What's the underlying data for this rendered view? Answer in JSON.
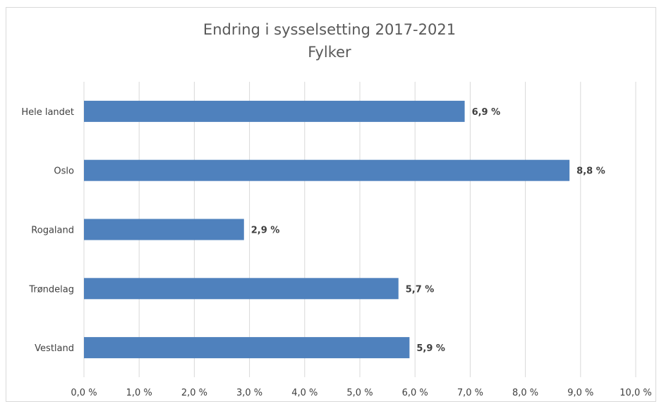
{
  "chart_data": {
    "type": "bar",
    "orientation": "horizontal",
    "title": "Endring i sysselsetting 2017-2021",
    "subtitle": "Fylker",
    "categories": [
      "Hele landet",
      "Oslo",
      "Rogaland",
      "Trøndelag",
      "Vestland"
    ],
    "values": [
      6.9,
      8.8,
      2.9,
      5.7,
      5.9
    ],
    "data_labels": [
      "6,9 %",
      "8,8 %",
      "2,9 %",
      "5,7 %",
      "5,9 %"
    ],
    "xlim": [
      0,
      10
    ],
    "x_ticks": [
      0,
      1,
      2,
      3,
      4,
      5,
      6,
      7,
      8,
      9,
      10
    ],
    "x_tick_labels": [
      "0,0 %",
      "1,0 %",
      "2,0 %",
      "3,0 %",
      "4,0 %",
      "5,0 %",
      "6,0 %",
      "7,0 %",
      "8,0 %",
      "9,0 %",
      "10,0 %"
    ],
    "bar_color": "#4f81bd",
    "grid": "vertical",
    "legend": "none"
  }
}
